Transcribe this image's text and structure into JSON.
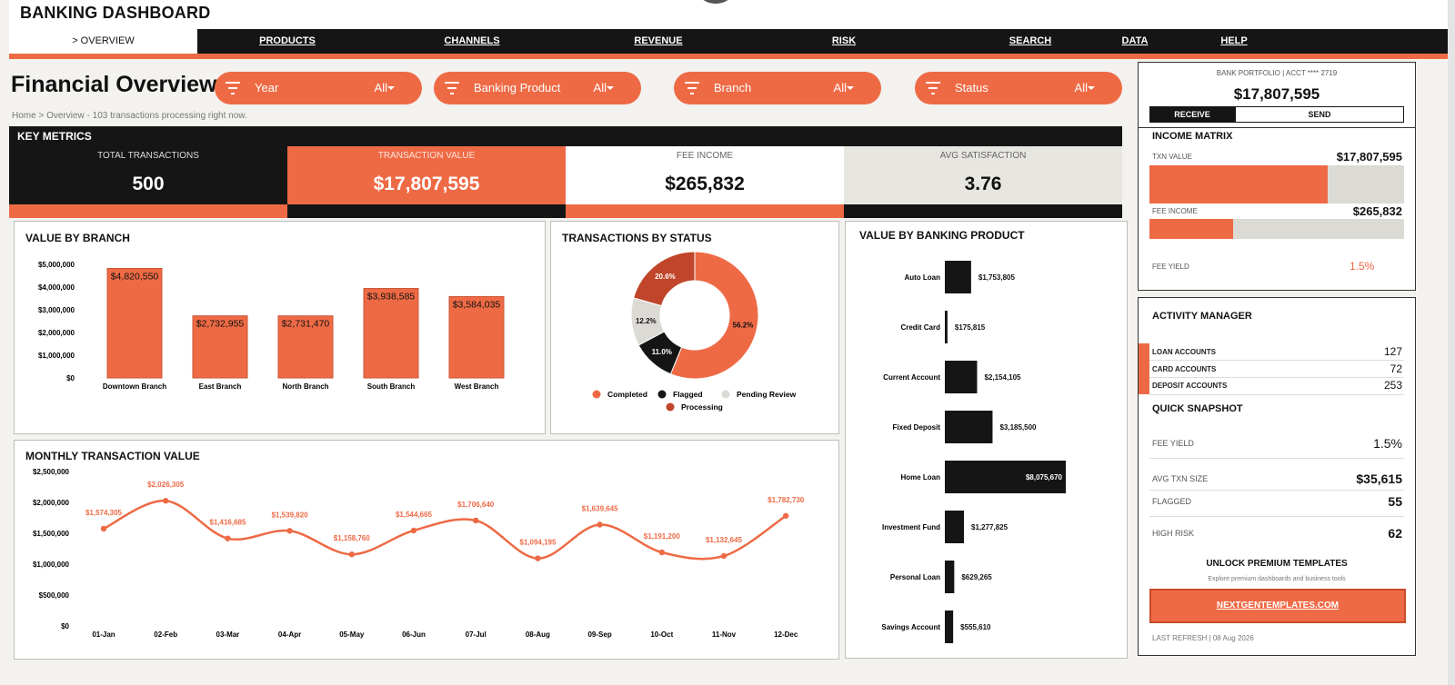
{
  "app": {
    "title": "BANKING DASHBOARD"
  },
  "nav": {
    "active": "> OVERVIEW",
    "items": [
      "PRODUCTS",
      "CHANNELS",
      "REVENUE",
      "RISK",
      "SEARCH",
      "DATA",
      "HELP"
    ]
  },
  "page": {
    "title": "Financial Overview",
    "breadcrumb": "Home  >  Overview  -  103 transactions processing right now."
  },
  "filters": [
    {
      "label": "Year",
      "value": "All",
      "icon": "filter-icon"
    },
    {
      "label": "Banking Product",
      "value": "All",
      "icon": "filter-icon"
    },
    {
      "label": "Branch",
      "value": "All",
      "icon": "filter-icon"
    },
    {
      "label": "Status",
      "value": "All",
      "icon": "filter-icon"
    }
  ],
  "key_metrics": {
    "title": "KEY METRICS",
    "cards": [
      {
        "label": "TOTAL TRANSACTIONS",
        "value": "500"
      },
      {
        "label": "TRANSACTION VALUE",
        "value": "$17,807,595"
      },
      {
        "label": "FEE INCOME",
        "value": "$265,832"
      },
      {
        "label": "AVG SATISFACTION",
        "value": "3.76"
      }
    ]
  },
  "colors": {
    "accent": "#ee6a45",
    "dark": "#151515",
    "light_gray": "#dcdad5",
    "processing": "#c0452a"
  },
  "chart_data": [
    {
      "type": "bar",
      "title": "VALUE BY BRANCH",
      "categories": [
        "Downtown Branch",
        "East Branch",
        "North Branch",
        "South Branch",
        "West Branch"
      ],
      "values": [
        4820550,
        2732955,
        2731470,
        3938585,
        3584035
      ],
      "data_labels": [
        "$4,820,550",
        "$2,732,955",
        "$2,731,470",
        "$3,938,585",
        "$3,584,035"
      ],
      "ylim": [
        0,
        5000000
      ],
      "yticks": [
        "$0",
        "$1,000,000",
        "$2,000,000",
        "$3,000,000",
        "$4,000,000",
        "$5,000,000"
      ]
    },
    {
      "type": "pie",
      "title": "TRANSACTIONS BY STATUS",
      "labels": [
        "Completed",
        "Flagged",
        "Pending Review",
        "Processing"
      ],
      "values": [
        56.2,
        11.0,
        12.2,
        20.6
      ],
      "data_labels": [
        "56.2%",
        "11.0%",
        "12.2%",
        "20.6%"
      ],
      "legend": "bottom"
    },
    {
      "type": "bar",
      "orientation": "horizontal",
      "title": "VALUE BY BANKING PRODUCT",
      "categories": [
        "Auto Loan",
        "Credit Card",
        "Current Account",
        "Fixed Deposit",
        "Home Loan",
        "Investment Fund",
        "Personal Loan",
        "Savings Account"
      ],
      "values": [
        1753805,
        175815,
        2154105,
        3185500,
        8075670,
        1277825,
        629265,
        555610
      ],
      "data_labels": [
        "$1,753,805",
        "$175,815",
        "$2,154,105",
        "$3,185,500",
        "$8,075,670",
        "$1,277,825",
        "$629,265",
        "$555,610"
      ]
    },
    {
      "type": "line",
      "title": "MONTHLY TRANSACTION VALUE",
      "x": [
        "01-Jan",
        "02-Feb",
        "03-Mar",
        "04-Apr",
        "05-May",
        "06-Jun",
        "07-Jul",
        "08-Aug",
        "09-Sep",
        "10-Oct",
        "11-Nov",
        "12-Dec"
      ],
      "values": [
        1574305,
        2026305,
        1416685,
        1539820,
        1158760,
        1544665,
        1706640,
        1094195,
        1639645,
        1191200,
        1132645,
        1782730
      ],
      "data_labels": [
        "$1,574,305",
        "$2,026,305",
        "$1,416,685",
        "$1,539,820",
        "$1,158,760",
        "$1,544,665",
        "$1,706,640",
        "$1,094,195",
        "$1,639,645",
        "$1,191,200",
        "$1,132,645",
        "$1,782,730"
      ],
      "ylim": [
        0,
        2500000
      ],
      "yticks": [
        "$0",
        "$500,000",
        "$1,000,000",
        "$1,500,000",
        "$2,000,000",
        "$2,500,000"
      ]
    }
  ],
  "portfolio": {
    "header": "BANK PORTFOLIO  |  ACCT **** 2719",
    "value": "$17,807,595",
    "tabs": [
      "RECEIVE",
      "SEND"
    ]
  },
  "income_matrix": {
    "title": "INCOME MATRIX",
    "rows": [
      {
        "label": "TXN VALUE",
        "value": "$17,807,595",
        "fill": 0.7
      },
      {
        "label": "FEE INCOME",
        "value": "$265,832",
        "fill": 0.33
      }
    ],
    "fee_yield_label": "FEE YIELD",
    "fee_yield_value": "1.5%"
  },
  "activity": {
    "title": "ACTIVITY MANAGER",
    "rows": [
      {
        "label": "LOAN ACCOUNTS",
        "value": "127"
      },
      {
        "label": "CARD ACCOUNTS",
        "value": "72"
      },
      {
        "label": "DEPOSIT ACCOUNTS",
        "value": "253"
      }
    ],
    "snapshot_title": "QUICK SNAPSHOT",
    "snapshot": [
      {
        "label": "FEE YIELD",
        "value": "1.5%"
      },
      {
        "label": "AVG TXN SIZE",
        "value": "$35,615"
      },
      {
        "label": "FLAGGED",
        "value": "55"
      },
      {
        "label": "HIGH RISK",
        "value": "62"
      }
    ],
    "promo_title": "UNLOCK PREMIUM TEMPLATES",
    "promo_sub": "Explore premium dashboards and business tools",
    "promo_link": "NEXTGENTEMPLATES.COM",
    "last_refresh": "LAST REFRESH  |  08 Aug 2026"
  }
}
